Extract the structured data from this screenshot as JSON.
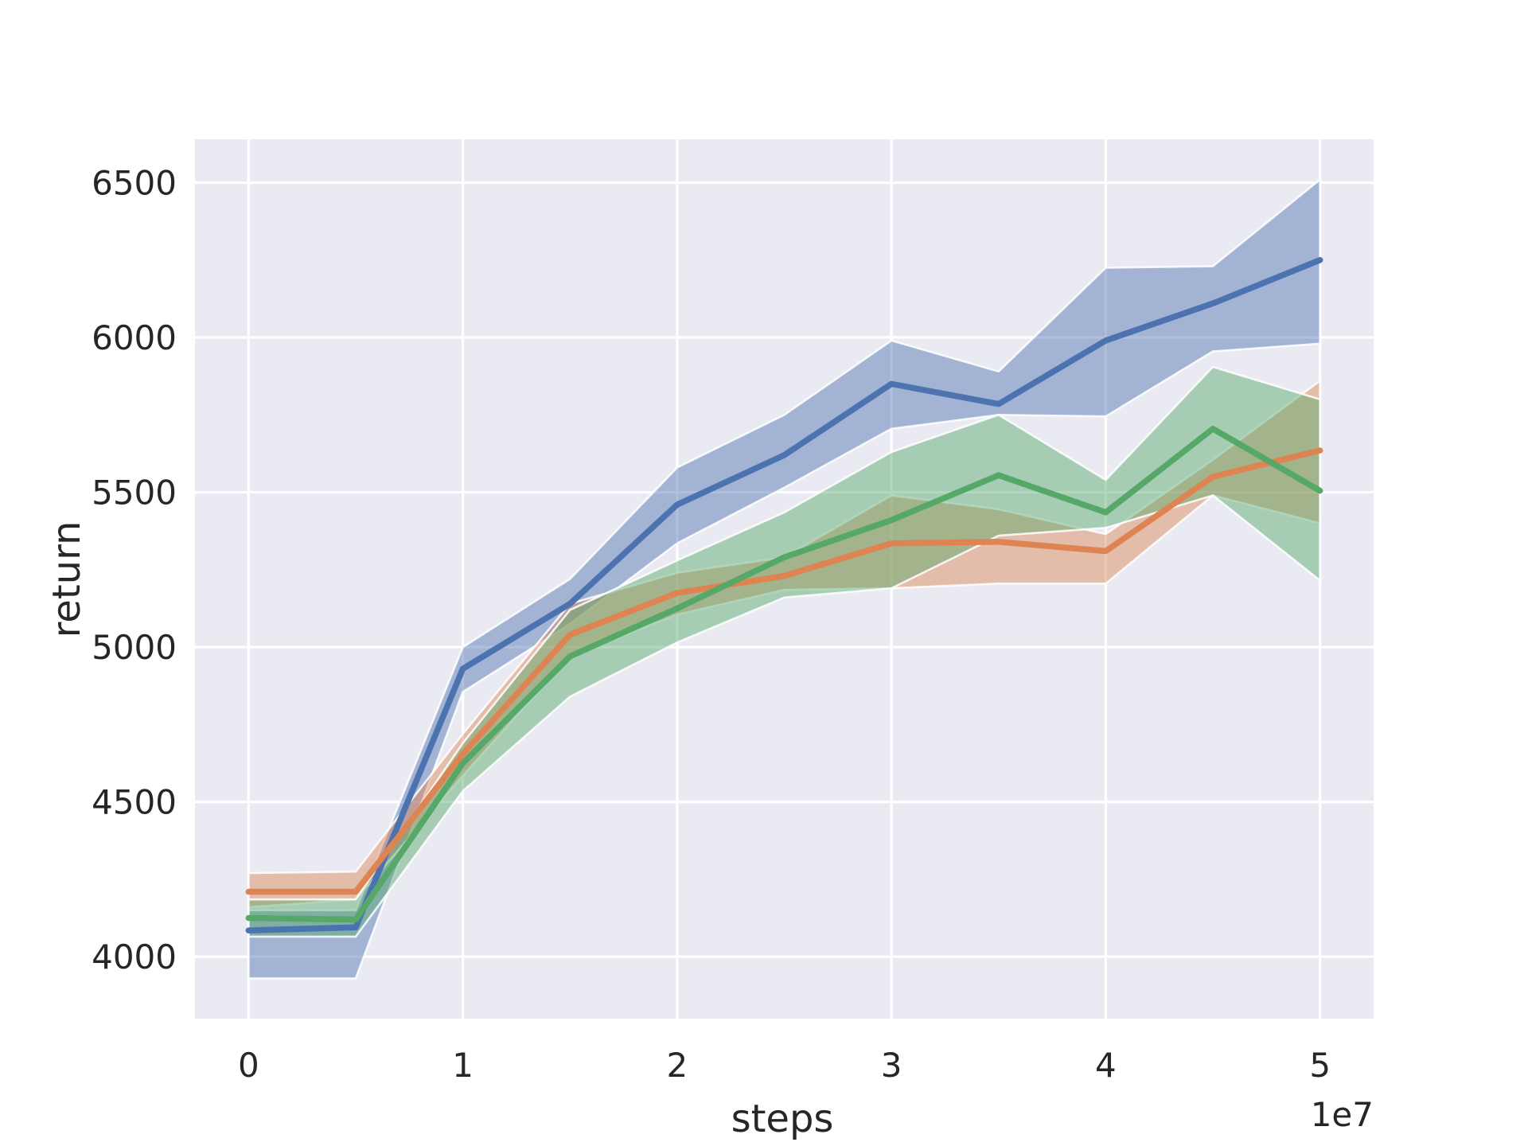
{
  "figure": {
    "background": "#ffffff",
    "plot_background": "#eaeaf2",
    "grid_color": "#ffffff",
    "text_color": "#262626"
  },
  "chart_data": {
    "type": "line",
    "title": "",
    "xlabel": "steps",
    "ylabel": "return",
    "x_offset_label": "1e7",
    "grid": true,
    "legend": false,
    "xlim": [
      -2500000,
      52500000
    ],
    "ylim": [
      3800,
      6640
    ],
    "x_tick_values": [
      0,
      10000000,
      20000000,
      30000000,
      40000000,
      50000000
    ],
    "x_tick_labels": [
      "0",
      "1",
      "2",
      "3",
      "4",
      "5"
    ],
    "y_tick_values": [
      4000,
      4500,
      5000,
      5500,
      6000,
      6500
    ],
    "y_tick_labels": [
      "4000",
      "4500",
      "5000",
      "5500",
      "6000",
      "6500"
    ],
    "x": [
      0,
      5000000,
      10000000,
      15000000,
      20000000,
      25000000,
      30000000,
      35000000,
      40000000,
      45000000,
      50000000
    ],
    "band_opacity": 0.45,
    "series": [
      {
        "name": "blue",
        "color": "#4c72b0",
        "values": [
          4085,
          4095,
          4930,
          5140,
          5460,
          5620,
          5850,
          5785,
          5990,
          6110,
          6250
        ],
        "band_low": [
          3930,
          3930,
          4855,
          5075,
          5335,
          5515,
          5705,
          5750,
          5745,
          5955,
          5980
        ],
        "band_high": [
          4150,
          4150,
          5000,
          5220,
          5580,
          5750,
          5990,
          5890,
          6225,
          6230,
          6510
        ]
      },
      {
        "name": "orange",
        "color": "#dd8452",
        "values": [
          4210,
          4210,
          4655,
          5040,
          5175,
          5230,
          5335,
          5340,
          5310,
          5550,
          5635
        ],
        "band_low": [
          4160,
          4185,
          4585,
          4970,
          5105,
          5185,
          5190,
          5205,
          5205,
          5490,
          5400
        ],
        "band_high": [
          4270,
          4275,
          4720,
          5140,
          5240,
          5290,
          5490,
          5445,
          5365,
          5605,
          5860
        ]
      },
      {
        "name": "green",
        "color": "#55a868",
        "values": [
          4125,
          4120,
          4625,
          4970,
          5125,
          5290,
          5410,
          5555,
          5435,
          5705,
          5505
        ],
        "band_low": [
          4065,
          4065,
          4535,
          4840,
          5015,
          5160,
          5190,
          5360,
          5385,
          5490,
          5215
        ],
        "band_high": [
          4185,
          4185,
          4690,
          5120,
          5280,
          5435,
          5630,
          5750,
          5540,
          5905,
          5800
        ]
      }
    ]
  }
}
